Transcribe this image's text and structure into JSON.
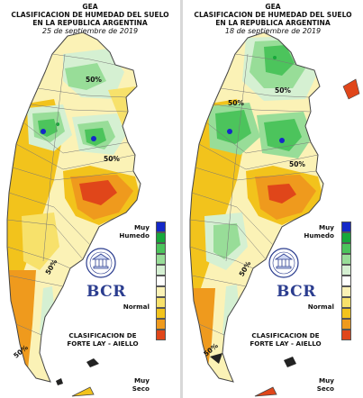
{
  "panels": [
    {
      "header": {
        "title1": "GEA",
        "title2": "CLASIFICACION DE HUMEDAD DEL SUELO",
        "title3": "EN LA REPUBLICA ARGENTINA",
        "date": "25 de septiembre de 2019"
      },
      "isolines": [
        "50%",
        "50%",
        "50%",
        "50%"
      ],
      "institution": "BCR",
      "method": {
        "line1": "CLASIFICACION DE",
        "line2": "FORTE LAY - AIELLO"
      },
      "legend": {
        "top1": "Muy",
        "top2": "Humedo",
        "mid": "Normal",
        "bot1": "Muy",
        "bot2": "Seco"
      }
    },
    {
      "header": {
        "title1": "GEA",
        "title2": "CLASIFICACION DE HUMEDAD DEL SUELO",
        "title3": "EN LA REPUBLICA ARGENTINA",
        "date": "18 de septiembre de 2019"
      },
      "isolines": [
        "50%",
        "50%",
        "50%",
        "50%",
        "50%"
      ],
      "institution": "BCR",
      "method": {
        "line1": "CLASIFICACION DE",
        "line2": "FORTE LAY - AIELLO"
      },
      "legend": {
        "top1": "Muy",
        "top2": "Humedo",
        "mid": "Normal",
        "bot1": "Muy",
        "bot2": "Seco"
      }
    }
  ],
  "legend_colors": [
    "#1428c8",
    "#17a83b",
    "#4cc45c",
    "#98dd98",
    "#d5f0d2",
    "#ffffff",
    "#fbf2b6",
    "#f7e16b",
    "#f2c31c",
    "#ef9a1d",
    "#e0461a"
  ],
  "map_colors": {
    "very_dry": "#e0461a",
    "dry_orange": "#ef9a1d",
    "dry_amber": "#f2c31c",
    "yellow": "#f7e16b",
    "pale_yellow": "#fbf2b6",
    "normal": "#ffffff",
    "light_green": "#d5f0d2",
    "green": "#98dd98",
    "mid_green": "#4cc45c",
    "dark_green": "#17a83b",
    "blue": "#1428c8"
  }
}
